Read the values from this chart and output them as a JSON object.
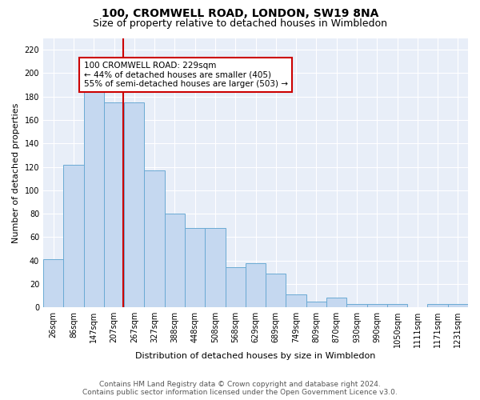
{
  "title": "100, CROMWELL ROAD, LONDON, SW19 8NA",
  "subtitle": "Size of property relative to detached houses in Wimbledon",
  "xlabel": "Distribution of detached houses by size in Wimbledon",
  "ylabel": "Number of detached properties",
  "footer_line1": "Contains HM Land Registry data © Crown copyright and database right 2024.",
  "footer_line2": "Contains public sector information licensed under the Open Government Licence v3.0.",
  "bar_labels": [
    "26sqm",
    "86sqm",
    "147sqm",
    "207sqm",
    "267sqm",
    "327sqm",
    "388sqm",
    "448sqm",
    "508sqm",
    "568sqm",
    "629sqm",
    "689sqm",
    "749sqm",
    "809sqm",
    "870sqm",
    "930sqm",
    "990sqm",
    "1050sqm",
    "1111sqm",
    "1171sqm",
    "1231sqm"
  ],
  "bar_values": [
    41,
    122,
    184,
    175,
    175,
    117,
    80,
    68,
    68,
    34,
    38,
    29,
    11,
    5,
    8,
    3,
    3,
    3,
    0,
    3,
    3
  ],
  "bar_color": "#c5d8f0",
  "bar_edge_color": "#6aaad4",
  "annotation_text_line1": "100 CROMWELL ROAD: 229sqm",
  "annotation_text_line2": "← 44% of detached houses are smaller (405)",
  "annotation_text_line3": "55% of semi-detached houses are larger (503) →",
  "annotation_box_color": "white",
  "annotation_box_edge_color": "#cc0000",
  "vline_color": "#cc0000",
  "vline_x": 3.45,
  "ylim": [
    0,
    230
  ],
  "yticks": [
    0,
    20,
    40,
    60,
    80,
    100,
    120,
    140,
    160,
    180,
    200,
    220
  ],
  "background_color": "#e8eef8",
  "title_fontsize": 10,
  "subtitle_fontsize": 9,
  "axis_label_fontsize": 8,
  "tick_fontsize": 7,
  "footer_fontsize": 6.5,
  "annotation_fontsize": 7.5
}
